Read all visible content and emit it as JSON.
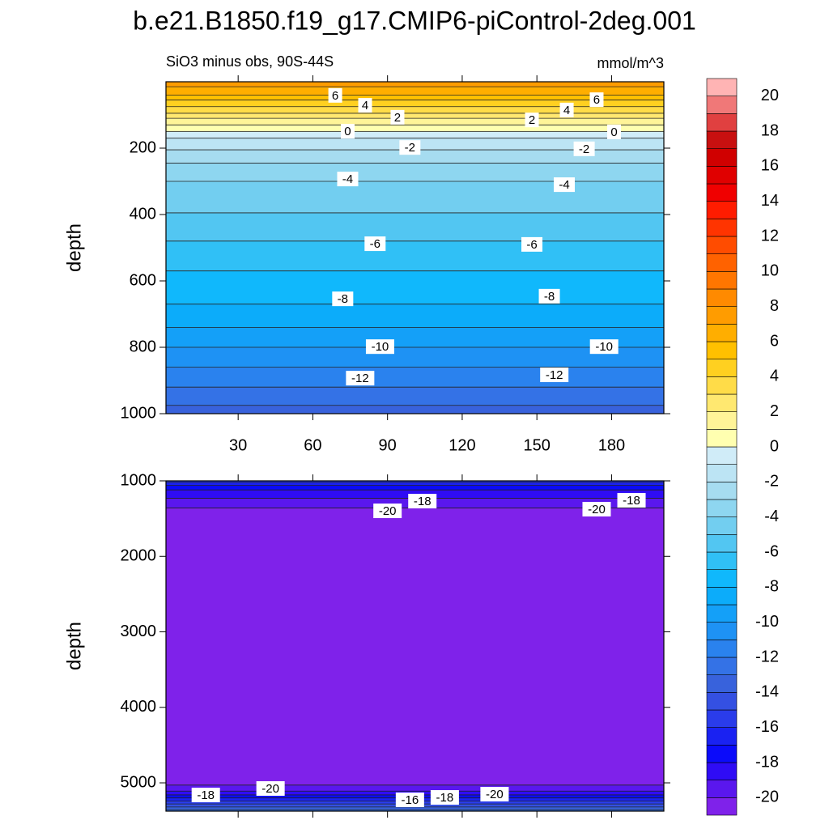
{
  "title": "b.e21.B1850.f19_g17.CMIP6-piControl-2deg.001",
  "chart_data": [
    {
      "type": "contour",
      "left_string": "SiO3 minus obs, 90S-44S",
      "right_string": "mmol/m^3",
      "y_label": "depth",
      "reversed": true,
      "xlim": [
        1,
        201
      ],
      "xticks": [
        30,
        60,
        90,
        120,
        150,
        180
      ],
      "ylim": [
        0,
        1000
      ],
      "yticks": [
        200,
        400,
        600,
        800,
        1000
      ],
      "contours": [
        {
          "level": 7,
          "depth": 15
        },
        {
          "level": 6,
          "depth": 40
        },
        {
          "level": 5,
          "depth": 55
        },
        {
          "level": 4,
          "depth": 75
        },
        {
          "level": 3,
          "depth": 95
        },
        {
          "level": 2,
          "depth": 110
        },
        {
          "level": 1,
          "depth": 130
        },
        {
          "level": 0,
          "depth": 150
        },
        {
          "level": -1,
          "depth": 170
        },
        {
          "level": -2,
          "depth": 205
        },
        {
          "level": -3,
          "depth": 245
        },
        {
          "level": -4,
          "depth": 300
        },
        {
          "level": -5,
          "depth": 395
        },
        {
          "level": -6,
          "depth": 480
        },
        {
          "level": -7,
          "depth": 570
        },
        {
          "level": -8,
          "depth": 670
        },
        {
          "level": -9,
          "depth": 740
        },
        {
          "level": -10,
          "depth": 800
        },
        {
          "level": -11,
          "depth": 860
        },
        {
          "level": -12,
          "depth": 920
        },
        {
          "level": -13,
          "depth": 975
        }
      ],
      "labels": [
        {
          "level": 6,
          "x": 69,
          "depth": 41
        },
        {
          "level": 4,
          "x": 81,
          "depth": 71
        },
        {
          "level": 2,
          "x": 94,
          "depth": 107
        },
        {
          "level": 0,
          "x": 74,
          "depth": 149
        },
        {
          "level": 2,
          "x": 148,
          "depth": 115
        },
        {
          "level": 4,
          "x": 162,
          "depth": 85
        },
        {
          "level": 6,
          "x": 174,
          "depth": 54
        },
        {
          "level": 0,
          "x": 181,
          "depth": 151
        },
        {
          "level": -2,
          "x": 99,
          "depth": 198
        },
        {
          "level": -2,
          "x": 169,
          "depth": 202
        },
        {
          "level": -4,
          "x": 74,
          "depth": 293
        },
        {
          "level": -4,
          "x": 161,
          "depth": 310
        },
        {
          "level": -6,
          "x": 85,
          "depth": 488
        },
        {
          "level": -6,
          "x": 148,
          "depth": 490
        },
        {
          "level": -8,
          "x": 72,
          "depth": 654
        },
        {
          "level": -8,
          "x": 155,
          "depth": 646
        },
        {
          "level": -10,
          "x": 87,
          "depth": 798
        },
        {
          "level": -10,
          "x": 177,
          "depth": 798
        },
        {
          "level": -12,
          "x": 79,
          "depth": 893
        },
        {
          "level": -12,
          "x": 157,
          "depth": 883
        }
      ]
    },
    {
      "type": "contour",
      "y_label": "depth",
      "reversed": true,
      "xlim": [
        1,
        201
      ],
      "ylim": [
        1000,
        5375
      ],
      "yticks": [
        1000,
        2000,
        3000,
        4000,
        5000
      ],
      "contours": [
        {
          "level": -16,
          "depth": 1020
        },
        {
          "level": -17,
          "depth": 1060
        },
        {
          "level": -18,
          "depth": 1120
        },
        {
          "level": -19,
          "depth": 1230
        },
        {
          "level": -20,
          "depth": 1360
        },
        {
          "level": -20,
          "depth": 5030
        },
        {
          "level": -19,
          "depth": 5110
        },
        {
          "level": -18,
          "depth": 5160
        },
        {
          "level": -17,
          "depth": 5200
        },
        {
          "level": -16,
          "depth": 5240
        },
        {
          "level": -15,
          "depth": 5280
        },
        {
          "level": -14,
          "depth": 5320
        },
        {
          "level": -13,
          "depth": 5355
        }
      ],
      "labels": [
        {
          "level": -18,
          "x": 104,
          "depth": 1268
        },
        {
          "level": -20,
          "x": 90,
          "depth": 1397
        },
        {
          "level": -20,
          "x": 174,
          "depth": 1375
        },
        {
          "level": -18,
          "x": 188,
          "depth": 1257
        },
        {
          "level": -18,
          "x": 17,
          "depth": 5161
        },
        {
          "level": -20,
          "x": 43,
          "depth": 5075
        },
        {
          "level": -16,
          "x": 99,
          "depth": 5225
        },
        {
          "level": -18,
          "x": 113,
          "depth": 5193
        },
        {
          "level": -20,
          "x": 133,
          "depth": 5150
        }
      ]
    }
  ],
  "colorbar": {
    "levels": [
      -21,
      -20,
      -19,
      -18,
      -17,
      -16,
      -15,
      -14,
      -13,
      -12,
      -11,
      -10,
      -9,
      -8,
      -7,
      -6,
      -5,
      -4,
      -3,
      -2,
      -1,
      0,
      1,
      2,
      3,
      4,
      5,
      6,
      7,
      8,
      9,
      10,
      11,
      12,
      13,
      14,
      15,
      16,
      17,
      18,
      19,
      20,
      21
    ],
    "colors": [
      "#7f22ea",
      "#5a17ee",
      "#2f0cf5",
      "#0b0bfa",
      "#1a22f2",
      "#2a3cea",
      "#3450e2",
      "#3862dc",
      "#3472e6",
      "#2a82ee",
      "#1e92f4",
      "#14a0f8",
      "#0cacfa",
      "#10b8fc",
      "#30c0f6",
      "#52c6f2",
      "#72cef0",
      "#8ed6f0",
      "#a6dcf0",
      "#bce4f4",
      "#d0ecf8",
      "#ffffb0",
      "#fff498",
      "#ffe870",
      "#ffdc48",
      "#ffd020",
      "#ffc000",
      "#ffae00",
      "#ff9c00",
      "#ff8a00",
      "#ff7600",
      "#ff6200",
      "#ff4c00",
      "#ff3400",
      "#ff1c00",
      "#f00000",
      "#e00000",
      "#d00000",
      "#c81010",
      "#e04040",
      "#f07878",
      "#ffb4b4"
    ],
    "ticks": [
      -20,
      -18,
      -16,
      -14,
      -12,
      -10,
      -8,
      -6,
      -4,
      -2,
      0,
      2,
      4,
      6,
      8,
      10,
      12,
      14,
      16,
      18,
      20
    ]
  }
}
